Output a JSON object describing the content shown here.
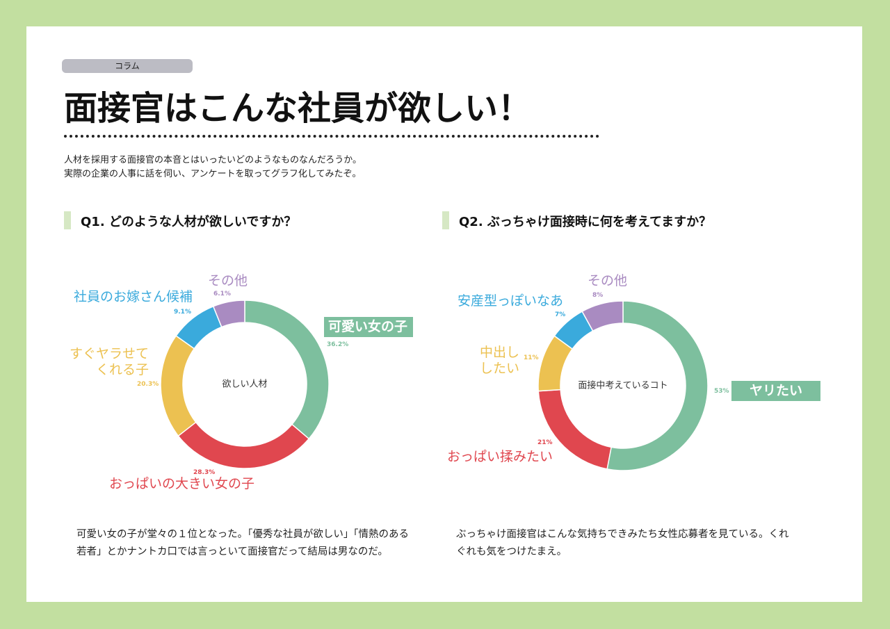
{
  "header": {
    "tag": "コラム",
    "title": "面接官はこんな社員が欲しい！",
    "intro": [
      "人材を採用する面接官の本音とはいったいどのようなものなんだろうか。",
      "実際の企業の人事に話を伺い、アンケートを取ってグラフ化してみたぞ。"
    ]
  },
  "chart_data": [
    {
      "type": "pie",
      "title": "Q1. どのような人材が欲しいですか？",
      "center_label": "欲しい人材",
      "categories": [
        "可愛い女の子",
        "おっぱいの大きい女の子",
        "すぐヤラせて\nくれる子",
        "社員のお嫁さん候補",
        "その他"
      ],
      "values": [
        36.2,
        28.3,
        20.3,
        9.1,
        6.1
      ],
      "value_labels": [
        "36.2%",
        "28.3%",
        "20.3%",
        "9.1%",
        "6.1%"
      ],
      "colors": [
        "#7dbf9e",
        "#e0474f",
        "#ecc151",
        "#3aaadc",
        "#a98bc1"
      ],
      "comment": "可愛い女の子が堂々の１位となった。「優秀な社員が欲しい」「情熱のある若者」とかナントカ口では言っといて面接官だって結局は男なのだ。"
    },
    {
      "type": "pie",
      "title": "Q2. ぶっちゃけ面接時に何を考えてますか？",
      "center_label": "面接中考えているコト",
      "categories": [
        "ヤリたい",
        "おっぱい揉みたい",
        "中出し\nしたい",
        "安産型っぽいなあ",
        "その他"
      ],
      "values": [
        53,
        21,
        11,
        7,
        8
      ],
      "value_labels": [
        "53%",
        "21%",
        "11%",
        "7%",
        "8%"
      ],
      "colors": [
        "#7dbf9e",
        "#e0474f",
        "#ecc151",
        "#3aaadc",
        "#a98bc1"
      ],
      "comment": "ぶっちゃけ面接官はこんな気持ちできみたち女性応募者を見ている。くれぐれも気をつけたまえ。"
    }
  ]
}
